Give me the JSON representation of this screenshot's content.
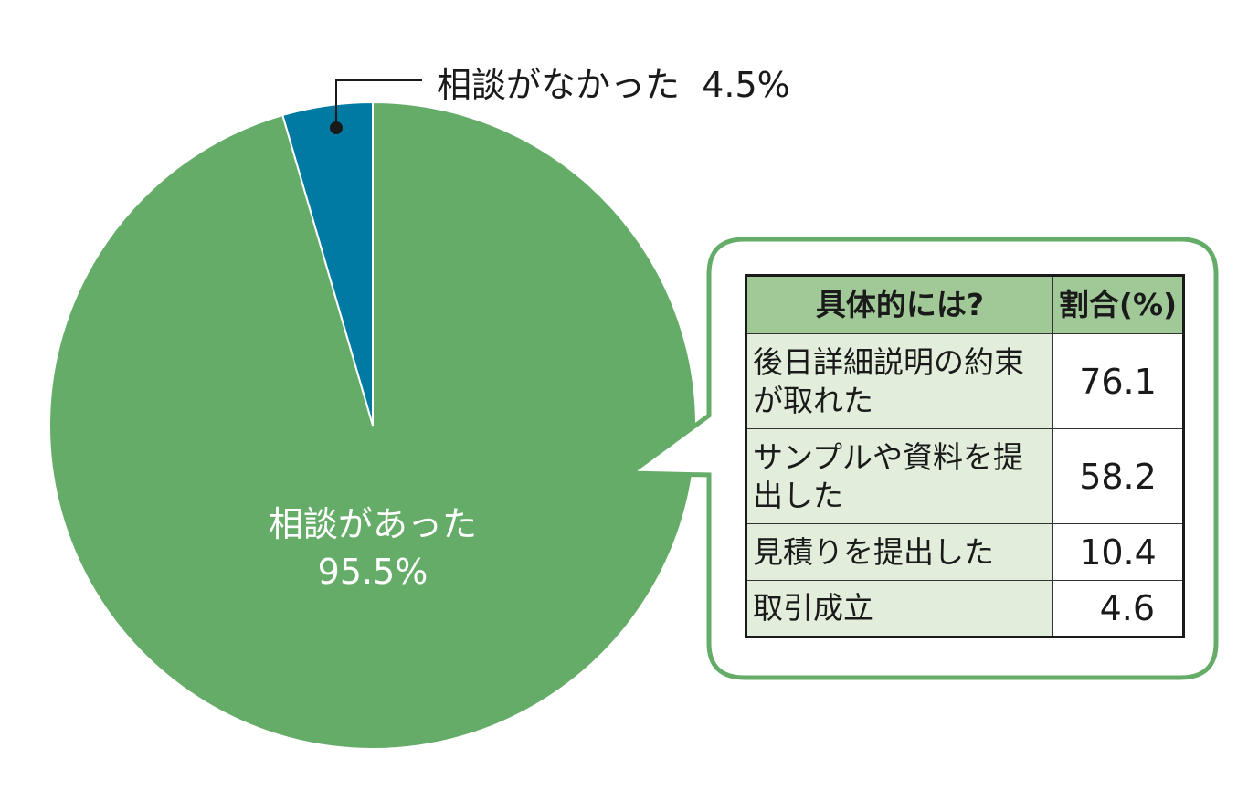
{
  "chart_data": {
    "type": "pie",
    "slices": [
      {
        "label": "相談がなかった",
        "value": 4.5,
        "value_label": "4.5%",
        "color": "#0079a3"
      },
      {
        "label": "相談があった",
        "value": 95.5,
        "value_label": "95.5%",
        "color": "#65ac69"
      }
    ],
    "callout_table": {
      "headers": [
        "具体的には?",
        "割合(%)"
      ],
      "rows": [
        {
          "label": "後日詳細説明の約束が取れた",
          "value": "76.1"
        },
        {
          "label": "サンプルや資料を提出した",
          "value": "58.2"
        },
        {
          "label": "見積りを提出した",
          "value": "10.4"
        },
        {
          "label": "取引成立",
          "value": "4.6"
        }
      ],
      "border_color": "#65ac69"
    }
  }
}
